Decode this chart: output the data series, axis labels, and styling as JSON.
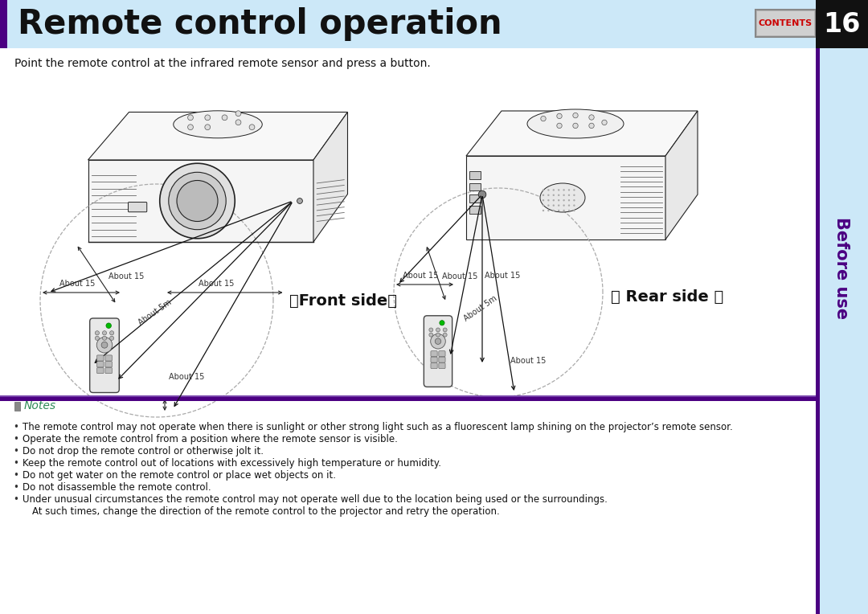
{
  "title": "Remote control operation",
  "page_number": "16",
  "header_bg": "#cce8f8",
  "header_bar_color": "#4b0082",
  "subtitle_text": "Point the remote control at the infrared remote sensor and press a button.",
  "contents_label": "CONTENTS",
  "contents_text_color": "#cc0000",
  "right_sidebar_bg": "#cce8f8",
  "right_sidebar_text": "Before use",
  "right_sidebar_text_color": "#4b0082",
  "right_bar_color": "#4b0082",
  "page_bg": "#ffffff",
  "notes_label": "Notes",
  "notes_label_color": "#2e8b57",
  "footer_bar_color": "#4b0082",
  "footer_bar2_color": "#7744aa",
  "bullet_char": "•",
  "bullet_items": [
    "The remote control may not operate when there is sunlight or other strong light such as a fluorescent lamp shining on the projector’s remote sensor.",
    "Operate the remote control from a position where the remote sensor is visible.",
    "Do not drop the remote control or otherwise jolt it.",
    "Keep the remote control out of locations with excessively high temperature or humidity.",
    "Do not get water on the remote control or place wet objects on it.",
    "Do not disassemble the remote control.",
    "Under unusual circumstances the remote control may not operate well due to the location being used or the surroundings.",
    "At such times, change the direction of the remote control to the projector and retry the operation."
  ],
  "front_label": "』Front side』",
  "rear_label": "』 Rear side 』",
  "about15": "About 15",
  "about5m": "About 5m",
  "line_color": "#222222",
  "dash_color": "#999999",
  "fill_color": "#ffffff",
  "body_outline": "#333333"
}
